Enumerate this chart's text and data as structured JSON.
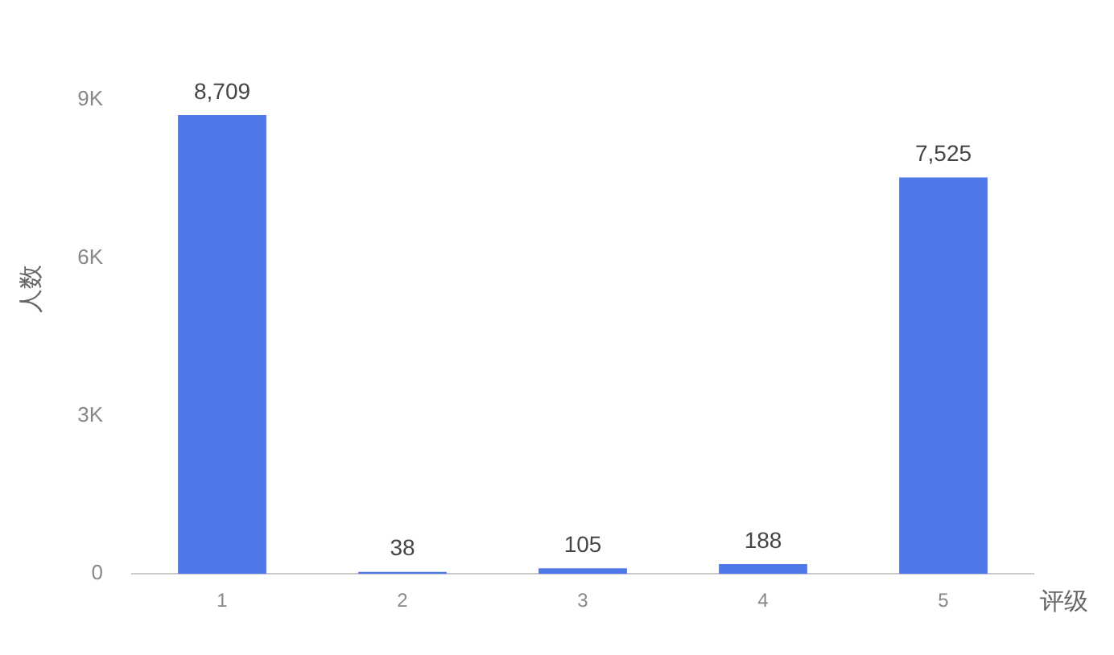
{
  "chart_data": {
    "type": "bar",
    "xlabel": "评级",
    "ylabel": "人数",
    "categories": [
      "1",
      "2",
      "3",
      "4",
      "5"
    ],
    "values": [
      8709,
      38,
      105,
      188,
      7525
    ],
    "value_labels": [
      "8,709",
      "38",
      "105",
      "188",
      "7,525"
    ],
    "color": "#4f79e8",
    "ylim": [
      0,
      9000
    ],
    "yticks": [
      {
        "value": 0,
        "label": "0"
      },
      {
        "value": 3000,
        "label": "3K"
      },
      {
        "value": 6000,
        "label": "6K"
      },
      {
        "value": 9000,
        "label": "9K"
      }
    ],
    "grid": false
  }
}
